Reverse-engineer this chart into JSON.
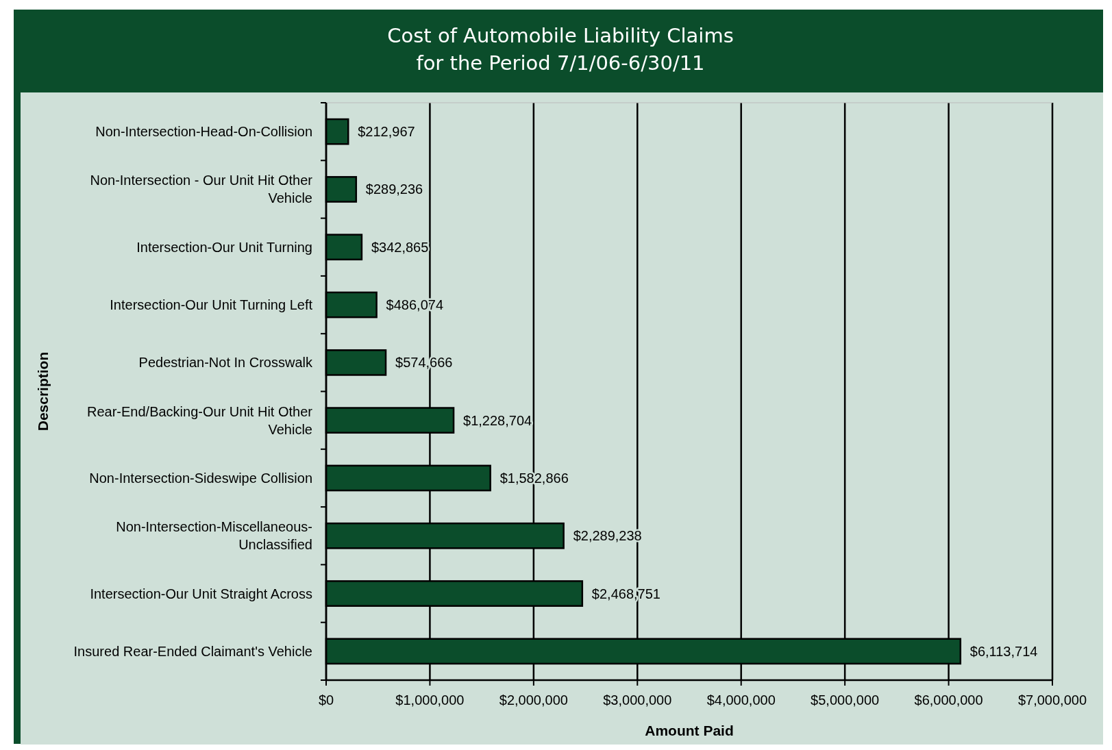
{
  "chart_data": {
    "type": "bar",
    "orientation": "horizontal",
    "title": "Cost of Automobile Liability Claims\nfor the Period 7/1/06-6/30/11",
    "xlabel": "Amount Paid",
    "ylabel": "Description",
    "categories": [
      "Non-Intersection-Head-On-Collision",
      "Non-Intersection - Our Unit Hit Other Vehicle",
      "Intersection-Our Unit Turning",
      "Intersection-Our Unit Turning Left",
      "Pedestrian-Not In Crosswalk",
      "Rear-End/Backing-Our Unit Hit Other Vehicle",
      "Non-Intersection-Sideswipe Collision",
      "Non-Intersection-Miscellaneous-Unclassified",
      "Intersection-Our Unit Straight Across",
      "Insured Rear-Ended Claimant's Vehicle"
    ],
    "series": [
      {
        "color": "#0b4d2b",
        "values": [
          212967,
          289236,
          342865,
          486074,
          574666,
          1228704,
          1582866,
          2289238,
          2468751,
          6113714
        ],
        "value_labels": [
          "$212,967",
          "$289,236",
          "$342,865",
          "$486,074",
          "$574,666",
          "$1,228,704",
          "$1,582,866",
          "$2,289,238",
          "$2,468,751",
          "$6,113,714"
        ]
      }
    ],
    "xlim": [
      0,
      7000000
    ],
    "xticks": [
      {
        "value": 0,
        "label": "$0"
      },
      {
        "value": 1000000,
        "label": "$1,000,000"
      },
      {
        "value": 2000000,
        "label": "$2,000,000"
      },
      {
        "value": 3000000,
        "label": "$3,000,000"
      },
      {
        "value": 4000000,
        "label": "$4,000,000"
      },
      {
        "value": 5000000,
        "label": "$5,000,000"
      },
      {
        "value": 6000000,
        "label": "$6,000,000"
      },
      {
        "value": 7000000,
        "label": "$7,000,000"
      }
    ],
    "grid": "x"
  }
}
